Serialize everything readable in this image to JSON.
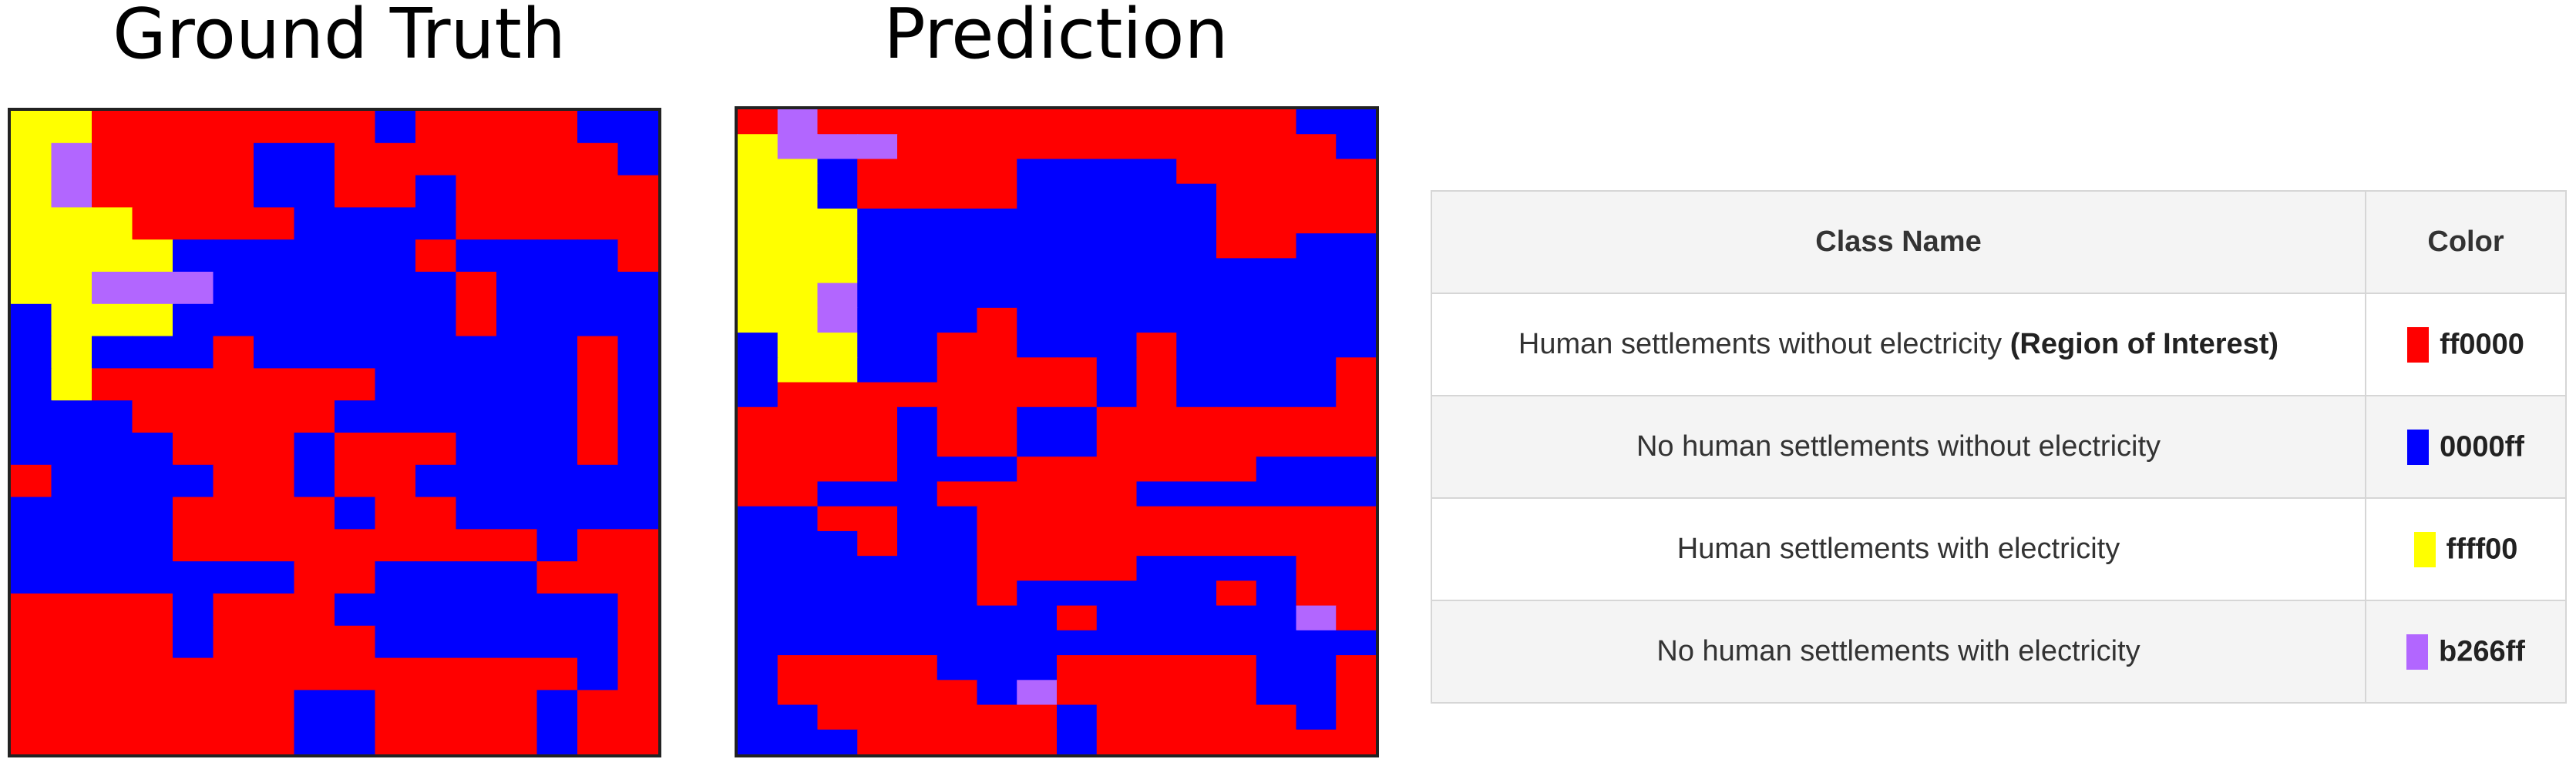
{
  "titles": {
    "ground_truth": "Ground Truth",
    "prediction": "Prediction"
  },
  "table": {
    "headers": [
      "Class Name",
      "Color"
    ],
    "rows": [
      {
        "name": "Human settlements without electricity",
        "emphasis": "(Region of Interest)",
        "hex": "ff0000",
        "color": "#ff0000"
      },
      {
        "name": "No human settlements without electricity",
        "emphasis": "",
        "hex": "0000ff",
        "color": "#0000ff"
      },
      {
        "name": "Human settlements with electricity",
        "emphasis": "",
        "hex": "ffff00",
        "color": "#ffff00"
      },
      {
        "name": "No human settlements with electricity",
        "emphasis": "",
        "hex": "b266ff",
        "color": "#b266ff"
      }
    ]
  },
  "maps": {
    "palette": {
      "R": "#ff0000",
      "B": "#0000ff",
      "Y": "#ffff00",
      "P": "#b266ff"
    },
    "ground_truth": [
      "YYRRRRRRRBRRRRBB",
      "YPRRRRBBRRRRRRRB",
      "YPRRRRBBRRBRRRRR",
      "YYYRRRRBBBBRRRRR",
      "YYYYBBBBBBRBBBBR",
      "YYPPPBBBBBBRBBBB",
      "BYYYBBBBBBBRBBBB",
      "BYBBBRBBBBBBBBRB",
      "BYRRRRRRRBBBBBRB",
      "BBBRRRRRBBBBBBRB",
      "BBBBRRRBRRRBBBRB",
      "RBBBBRRBRRBBBBBB",
      "BBBBRRRRBRRBBBBB",
      "BBBBRRRRRRRRRBRR",
      "BBBBBBBRRBBBBRRR",
      "RRRRBRRRBBBBBBBR",
      "RRRRBRRRRBBBBBBR",
      "RRRRRRRRRRRRRRBR",
      "RRRRRRRBBRRRRBRR",
      "RRRRRRRBBRRRRBRR"
    ],
    "prediction": [
      "RPRRRRRRRRRRRRBB",
      "YPPPRRRRRRRRRRRB",
      "YYBRRRRBBBBRRRRR",
      "YYBRRRRBBBBBRRRR",
      "YYYBBBBBBBBBRRRR",
      "YYYBBBBBBBBBRRBB",
      "YYYBBBBBBBBBBBBB",
      "YYPBBBBBBBBBBBBB",
      "YYPBBBRBBBBBBBBB",
      "BYYBBRRBBBRBBBBB",
      "BYYBBRRRRBRBBBBR",
      "BRRRRRRRRBRBBBBR",
      "RRRRBRRBBRRRRRRR",
      "RRRRBRRBBRRRRRRR",
      "RRRRBBBRRRRRRBBB",
      "RRBBBRRRRRBBBBBB",
      "BBRRBBRRRRRRRRRR",
      "BBBRBBRRRRRRRRRR",
      "BBBBBBRRRRBBBBRR",
      "BBBBBBRBBBBBRBRR",
      "BBBBBBBBRBBBBBPR",
      "BBBBBBBBBBBBBBBB",
      "BRRRRBBBRRRRRBBR",
      "BRRRRRBPRRRRRBBR",
      "BBRRRRRRBRRRRRBR",
      "BBBRRRRRBRRRRRRR"
    ]
  }
}
